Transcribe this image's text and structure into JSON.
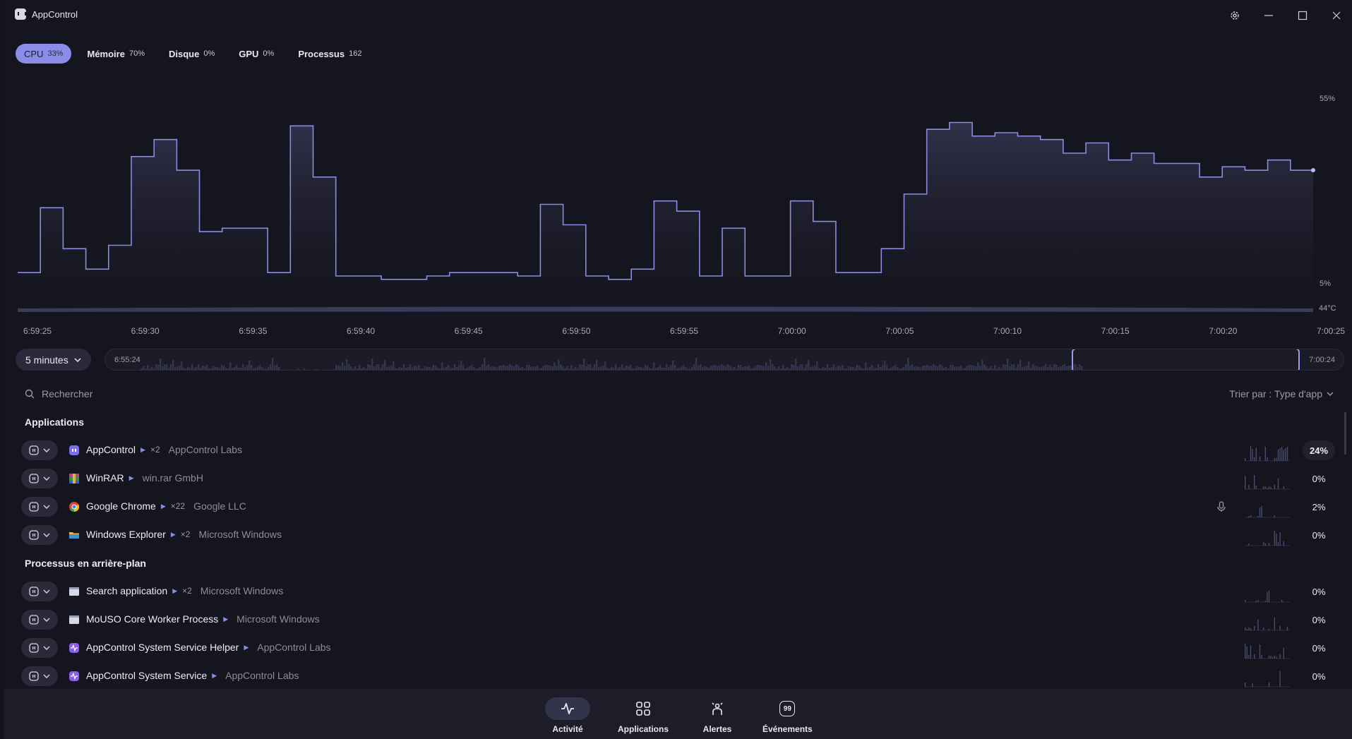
{
  "window": {
    "title": "AppControl"
  },
  "tabs": [
    {
      "label": "CPU",
      "value": "33%"
    },
    {
      "label": "Mémoire",
      "value": "70%"
    },
    {
      "label": "Disque",
      "value": "0%"
    },
    {
      "label": "GPU",
      "value": "0%"
    },
    {
      "label": "Processus",
      "value": "162"
    }
  ],
  "chart_data": {
    "type": "area",
    "title": "",
    "y_labels": [
      "55%",
      "5%"
    ],
    "temp_label": "44°C",
    "ylim": [
      0,
      60
    ],
    "x_ticks": [
      "6:59:25",
      "6:59:30",
      "6:59:35",
      "6:59:40",
      "6:59:45",
      "6:59:50",
      "6:59:55",
      "7:00:00",
      "7:00:05",
      "7:00:10",
      "7:00:15",
      "7:00:20",
      "7:00:25"
    ],
    "series": [
      {
        "values": [
          7,
          26,
          14,
          8,
          15,
          41,
          46,
          37,
          19,
          20,
          20,
          7,
          50,
          35,
          6,
          6,
          5,
          5,
          6,
          7,
          7,
          7,
          6,
          27,
          21,
          6,
          5,
          8,
          28,
          25,
          6,
          20,
          6,
          6,
          28,
          22,
          7,
          7,
          14,
          30,
          49,
          51,
          47,
          48,
          47,
          46,
          42,
          45,
          40,
          42,
          39,
          39,
          35,
          38,
          37,
          40,
          37
        ]
      }
    ]
  },
  "timerange": {
    "label": "5 minutes",
    "start": "6:55:24",
    "end": "7:00:24"
  },
  "search": {
    "placeholder": "Rechercher"
  },
  "sort": {
    "label": "Trier par : Type d'app"
  },
  "sections": {
    "apps": "Applications",
    "background": "Processus en arrière-plan"
  },
  "apps": [
    {
      "name": "AppControl",
      "count": "×2",
      "publisher": "AppControl Labs",
      "pct": "24%",
      "icon": "appcontrol-icon",
      "color": "#7c6cf0"
    },
    {
      "name": "WinRAR",
      "count": "",
      "publisher": "win.rar GmbH",
      "pct": "0%",
      "icon": "winrar-icon",
      "color": "#b04a8a"
    },
    {
      "name": "Google Chrome",
      "count": "×22",
      "publisher": "Google LLC",
      "pct": "2%",
      "icon": "chrome-icon",
      "color": "#4285f4"
    },
    {
      "name": "Windows Explorer",
      "count": "×2",
      "publisher": "Microsoft Windows",
      "pct": "0%",
      "icon": "folder-icon",
      "color": "#e8b84a"
    }
  ],
  "background": [
    {
      "name": "Search application",
      "count": "×2",
      "publisher": "Microsoft Windows",
      "pct": "0%",
      "icon": "window-icon",
      "color": "#d8dbe6"
    },
    {
      "name": "MoUSO Core Worker Process",
      "count": "",
      "publisher": "Microsoft Windows",
      "pct": "0%",
      "icon": "window-icon",
      "color": "#d8dbe6"
    },
    {
      "name": "AppControl System Service Helper",
      "count": "",
      "publisher": "AppControl Labs",
      "pct": "0%",
      "icon": "pulse-icon",
      "color": "#8a5cf0"
    },
    {
      "name": "AppControl System Service",
      "count": "",
      "publisher": "AppControl Labs",
      "pct": "0%",
      "icon": "pulse-icon",
      "color": "#8a5cf0"
    }
  ],
  "nav": [
    {
      "label": "Activité",
      "icon": "activity-icon"
    },
    {
      "label": "Applications",
      "icon": "grid-icon"
    },
    {
      "label": "Alertes",
      "icon": "alert-icon"
    },
    {
      "label": "Événements",
      "icon": "events-icon",
      "badge": "99"
    }
  ]
}
